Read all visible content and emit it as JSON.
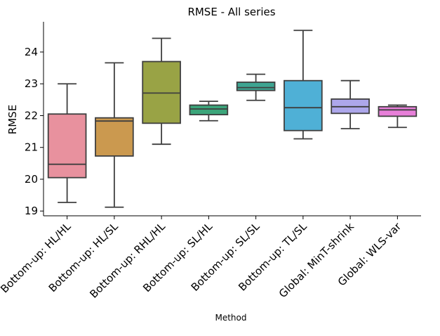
{
  "chart_data": {
    "type": "box",
    "title": "RMSE - All series",
    "xlabel": "Method",
    "ylabel": "RMSE",
    "ylim": [
      18.85,
      24.95
    ],
    "yticks": [
      19,
      20,
      21,
      22,
      23,
      24
    ],
    "grid": false,
    "categories": [
      "Bottom-up: HL/HL",
      "Bottom-up: HL/SL",
      "Bottom-up: RHL/HL",
      "Bottom-up: SL/HL",
      "Bottom-up: SL/SL",
      "Bottom-up: TL/SL",
      "Global: MinT-shrink",
      "Global: WLS-var"
    ],
    "boxes": [
      {
        "whisker_low": 19.27,
        "q1": 20.05,
        "median": 20.47,
        "q3": 22.05,
        "whisker_high": 23.0,
        "color": "#e8919e"
      },
      {
        "whisker_low": 19.12,
        "q1": 20.73,
        "median": 21.83,
        "q3": 21.93,
        "whisker_high": 23.66,
        "color": "#cb994f"
      },
      {
        "whisker_low": 21.1,
        "q1": 21.76,
        "median": 22.71,
        "q3": 23.7,
        "whisker_high": 24.43,
        "color": "#99a345"
      },
      {
        "whisker_low": 21.84,
        "q1": 22.03,
        "median": 22.21,
        "q3": 22.33,
        "whisker_high": 22.45,
        "color": "#3ba57a"
      },
      {
        "whisker_low": 22.48,
        "q1": 22.79,
        "median": 22.88,
        "q3": 23.05,
        "whisker_high": 23.3,
        "color": "#3ea592"
      },
      {
        "whisker_low": 21.27,
        "q1": 21.53,
        "median": 22.25,
        "q3": 23.1,
        "whisker_high": 24.68,
        "color": "#4fb0d6"
      },
      {
        "whisker_low": 21.59,
        "q1": 22.07,
        "median": 22.28,
        "q3": 22.52,
        "whisker_high": 23.1,
        "color": "#ada7eb"
      },
      {
        "whisker_low": 21.63,
        "q1": 21.98,
        "median": 22.18,
        "q3": 22.28,
        "whisker_high": 22.33,
        "color": "#e77fd9"
      }
    ]
  }
}
